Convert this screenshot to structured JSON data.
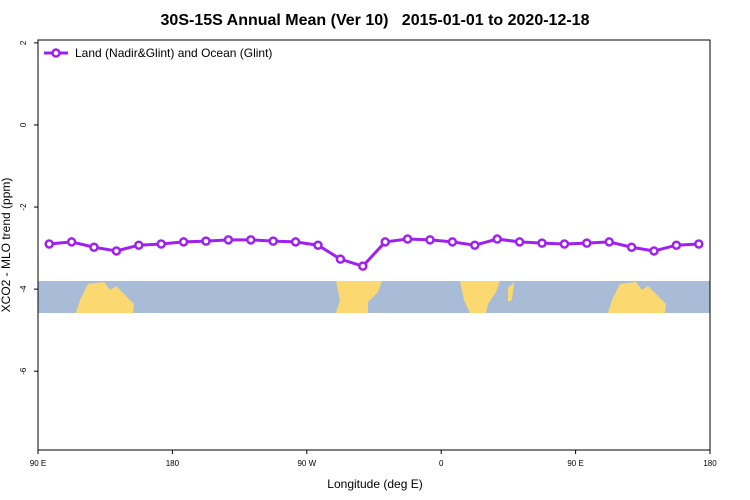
{
  "chart_data": {
    "type": "line",
    "title": "30S-15S Annual Mean (Ver 10)   2015-01-01 to 2020-12-18",
    "x_label": "Longitude (deg E)",
    "y_label": "XCO2 - MLO trend (ppm)",
    "x": [
      97.5,
      112.5,
      127.5,
      142.5,
      157.5,
      172.5,
      187.5,
      202.5,
      217.5,
      232.5,
      247.5,
      262.5,
      277.5,
      292.5,
      307.5,
      322.5,
      337.5,
      352.5,
      367.5,
      382.5,
      397.5,
      412.5,
      427.5,
      442.5,
      457.5,
      472.5,
      487.5,
      502.5,
      517.5,
      532.5
    ],
    "series": [
      {
        "name": "Land (Nadir&Glint) and Ocean (Glint)",
        "color": "#a020f0",
        "values": [
          -2.9,
          -2.85,
          -2.98,
          -3.07,
          -2.93,
          -2.9,
          -2.85,
          -2.83,
          -2.8,
          -2.8,
          -2.83,
          -2.85,
          -2.93,
          -3.27,
          -3.44,
          -2.85,
          -2.78,
          -2.8,
          -2.85,
          -2.93,
          -2.78,
          -2.85,
          -2.88,
          -2.9,
          -2.88,
          -2.85,
          -2.98,
          -3.07,
          -2.93,
          -2.9
        ]
      }
    ],
    "xlim": [
      90,
      540
    ],
    "xticks": [
      {
        "value": 90,
        "label": "90 E"
      },
      180,
      {
        "value": 270,
        "label": "90 W"
      },
      {
        "value": 360,
        "label": "0"
      },
      {
        "value": 450,
        "label": "90 E"
      },
      {
        "value": 540,
        "label": "180"
      }
    ],
    "ylim": [
      -7.92,
      2.07
    ],
    "yticks": [
      -6,
      -4,
      -2,
      0,
      2
    ],
    "legend": "top-left"
  }
}
